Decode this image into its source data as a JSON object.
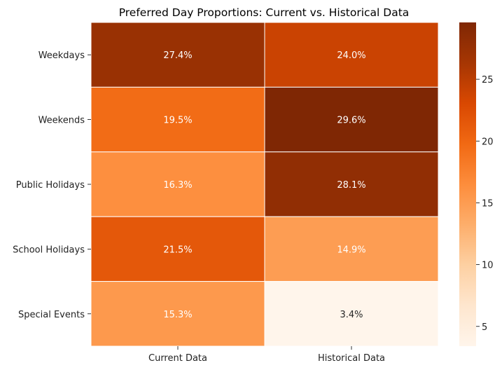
{
  "chart_data": {
    "type": "heatmap",
    "title": "Preferred Day Proportions: Current vs. Historical Data",
    "rows": [
      "Weekdays",
      "Weekends",
      "Public Holidays",
      "School Holidays",
      "Special Events"
    ],
    "columns": [
      "Current Data",
      "Historical Data"
    ],
    "values": [
      [
        27.4,
        24.0
      ],
      [
        19.5,
        29.6
      ],
      [
        16.3,
        28.1
      ],
      [
        21.5,
        14.9
      ],
      [
        15.3,
        3.4
      ]
    ],
    "annotations": [
      [
        "27.4%",
        "24.0%"
      ],
      [
        "19.5%",
        "29.6%"
      ],
      [
        "16.3%",
        "28.1%"
      ],
      [
        "21.5%",
        "14.9%"
      ],
      [
        "15.3%",
        "3.4%"
      ]
    ],
    "colormap": "Oranges",
    "colorbar": {
      "min": 3.4,
      "max": 29.6,
      "ticks": [
        5,
        10,
        15,
        20,
        25
      ]
    },
    "colors": {
      "low": "#fff5eb",
      "mid": "#f4791f",
      "high": "#7f2704",
      "grid_line": "#ffffff"
    }
  }
}
